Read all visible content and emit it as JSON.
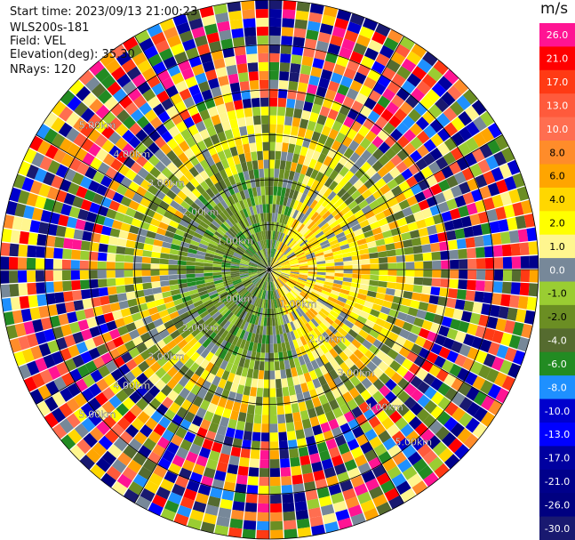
{
  "header": {
    "start_time": "Start time: 2023/09/13 21:00:23",
    "instrument": "WLS200s-181",
    "field": "Field: VEL",
    "elevation": "Elevation(deg): 35.30",
    "nrays": "NRays: 120"
  },
  "chart_data": {
    "type": "heatmap",
    "projection": "polar-ppi",
    "nrays": 120,
    "range_km_max": 6.0,
    "range_rings_km": [
      1,
      2,
      3,
      4,
      5,
      6
    ],
    "ring_labels": [
      "1.00km",
      "2.00km",
      "3.00km",
      "4.00km",
      "5.00km"
    ],
    "grid": true,
    "colorbar": {
      "unit": "m/s",
      "position": "right",
      "ticks": [
        "26.0",
        "21.0",
        "17.0",
        "13.0",
        "10.0",
        "8.0",
        "6.0",
        "4.0",
        "2.0",
        "1.0",
        "0.0",
        "-1.0",
        "-2.0",
        "-4.0",
        "-6.0",
        "-8.0",
        "-10.0",
        "-13.0",
        "-17.0",
        "-21.0",
        "-26.0",
        "-30.0"
      ],
      "bins": [
        {
          "label": "26.0",
          "color": "#ff1493"
        },
        {
          "label": "21.0",
          "color": "#ff0000"
        },
        {
          "label": "17.0",
          "color": "#ff3a14"
        },
        {
          "label": "13.0",
          "color": "#ff5a3c"
        },
        {
          "label": "10.0",
          "color": "#ff6e50"
        },
        {
          "label": "8.0",
          "color": "#ff8c2a"
        },
        {
          "label": "6.0",
          "color": "#ffa500"
        },
        {
          "label": "4.0",
          "color": "#ffd700"
        },
        {
          "label": "2.0",
          "color": "#ffff00"
        },
        {
          "label": "1.0",
          "color": "#fff68f"
        },
        {
          "label": "0.0",
          "color": "#778899"
        },
        {
          "label": "-1.0",
          "color": "#9acd32"
        },
        {
          "label": "-2.0",
          "color": "#6b8e23"
        },
        {
          "label": "-4.0",
          "color": "#556b2f"
        },
        {
          "label": "-6.0",
          "color": "#228b22"
        },
        {
          "label": "-8.0",
          "color": "#1e90ff"
        },
        {
          "label": "-10.0",
          "color": "#0000cd"
        },
        {
          "label": "-13.0",
          "color": "#0000ff"
        },
        {
          "label": "-17.0",
          "color": "#0000a0"
        },
        {
          "label": "-21.0",
          "color": "#00008b"
        },
        {
          "label": "-26.0",
          "color": "#000080"
        },
        {
          "label": "-30.0",
          "color": "#191970"
        }
      ]
    }
  }
}
